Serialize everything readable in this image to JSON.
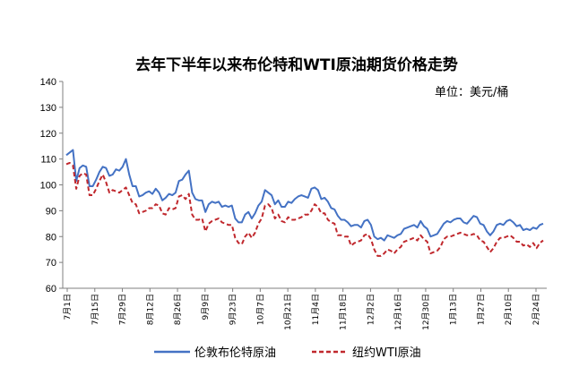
{
  "chart_data": {
    "type": "line",
    "title": "去年下半年以来布伦特和WTI原油期货价格走势",
    "unit_label": "单位：美元/桶",
    "ylim": [
      60,
      140
    ],
    "y_ticks": [
      60,
      70,
      80,
      90,
      100,
      110,
      120,
      130,
      140
    ],
    "x_ticks": [
      "7月1日",
      "7月15日",
      "7月29日",
      "8月12日",
      "8月26日",
      "9月9日",
      "9月23日",
      "10月7日",
      "10月21日",
      "11月4日",
      "11月18日",
      "12月2日",
      "12月16日",
      "12月30日",
      "1月13日",
      "1月27日",
      "2月10日",
      "2月24日"
    ],
    "grid": false,
    "legend_position": "bottom",
    "colors": {
      "brent": "#4472C4",
      "wti": "#C0282D"
    },
    "series": [
      {
        "name": "伦敦布伦特原油",
        "style": "solid",
        "values": [
          111.5,
          112.5,
          113.5,
          101.5,
          106.5,
          107.5,
          107,
          99.5,
          99.5,
          102,
          105,
          107,
          106.5,
          103.5,
          104,
          106,
          105.5,
          107,
          110,
          104,
          99.5,
          99.5,
          95.5,
          96,
          97,
          97.5,
          96.5,
          98.5,
          97,
          94,
          95,
          96.5,
          96,
          97,
          101.5,
          102,
          104,
          105.5,
          97,
          94.5,
          94,
          94,
          89.5,
          92.5,
          93.5,
          93,
          93.5,
          91.5,
          92,
          91.5,
          92,
          87,
          85.5,
          85.5,
          88.5,
          89.5,
          87,
          89,
          92,
          93.5,
          98,
          97,
          96,
          92.5,
          94,
          91.5,
          91.5,
          93.5,
          93,
          94.5,
          95.5,
          96,
          95.5,
          95,
          98.5,
          99,
          98,
          94.5,
          95,
          93.5,
          91,
          90.5,
          88,
          86.5,
          86.5,
          85.5,
          84,
          84.5,
          84.5,
          83.5,
          86,
          86.5,
          84.5,
          80,
          79,
          79.5,
          78.5,
          80.5,
          80,
          79.5,
          80.5,
          81,
          83,
          83.5,
          84,
          84.5,
          83.5,
          86,
          84,
          83,
          80,
          80.5,
          81,
          83,
          85,
          86,
          85.5,
          86.5,
          87,
          87,
          85.5,
          85,
          86.5,
          88,
          87.5,
          85,
          84.5,
          82,
          80.5,
          82,
          84.5,
          85,
          84.5,
          86,
          86.5,
          85.5,
          84,
          84.5,
          82.5,
          83,
          82.5,
          83.5,
          83,
          84.5,
          85
        ]
      },
      {
        "name": "纽约WTI原油",
        "style": "dashed",
        "values": [
          108,
          108.5,
          107.5,
          98.5,
          103.5,
          104.5,
          104,
          96,
          96,
          98.5,
          101.5,
          104,
          101,
          97,
          98,
          97.5,
          97,
          98,
          99,
          96,
          93,
          92.5,
          89,
          89.5,
          90,
          91,
          91,
          92.5,
          92,
          89,
          88.5,
          91,
          90.5,
          91,
          95.5,
          96,
          94.5,
          96.5,
          88.5,
          86.5,
          86.5,
          87,
          82,
          85,
          86,
          86.5,
          87,
          85.5,
          85,
          84.5,
          84.5,
          79.5,
          77.5,
          77,
          80,
          81.5,
          79.5,
          81.5,
          85,
          87,
          92,
          92.5,
          91,
          87,
          88.5,
          86,
          85.5,
          87.5,
          86.5,
          86.5,
          87,
          87.5,
          88.5,
          88.5,
          90,
          92.5,
          91.5,
          89,
          89,
          86.5,
          85.5,
          85,
          80.5,
          80.5,
          80,
          80,
          76.5,
          77.5,
          78,
          78.5,
          80.5,
          81,
          79,
          75,
          72.5,
          72.5,
          73.5,
          75,
          74.5,
          73.5,
          75,
          76,
          78,
          78.5,
          79,
          79.5,
          78.5,
          80.5,
          79,
          78,
          73.5,
          74,
          74.5,
          76,
          79,
          80,
          80,
          80.5,
          81,
          81.5,
          81,
          80.5,
          80.5,
          81,
          80.5,
          78.5,
          78,
          76,
          74,
          75.5,
          78,
          79.5,
          79.5,
          80,
          80.5,
          79.5,
          78,
          78,
          76.5,
          77,
          76,
          77.5,
          75.5,
          77.5,
          78.5
        ]
      }
    ]
  }
}
